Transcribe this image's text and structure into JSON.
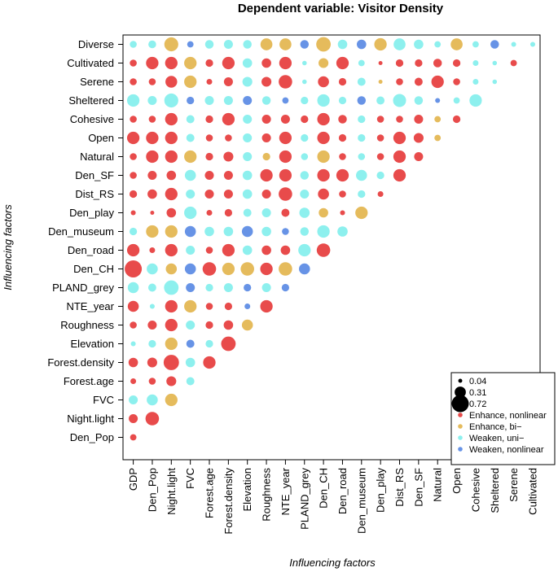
{
  "chart_data": {
    "type": "scatter",
    "title": "Dependent variable: Visitor Density",
    "xlabel": "Influencing factors",
    "ylabel": "Influencing factors",
    "x_categories": [
      "GDP",
      "Den_Pop",
      "Night.light",
      "FVC",
      "Forest.age",
      "Forest.density",
      "Elevation",
      "Roughness",
      "NTE_year",
      "PLAND_grey",
      "Den_CH",
      "Den_road",
      "Den_museum",
      "Den_play",
      "Dist_RS",
      "Den_SF",
      "Natural",
      "Open",
      "Cohesive",
      "Sheltered",
      "Serene",
      "Cultivated"
    ],
    "y_categories": [
      "Diverse",
      "Cultivated",
      "Serene",
      "Sheltered",
      "Cohesive",
      "Open",
      "Natural",
      "Den_SF",
      "Dist_RS",
      "Den_play",
      "Den_museum",
      "Den_road",
      "Den_CH",
      "PLAND_grey",
      "NTE_year",
      "Roughness",
      "Elevation",
      "Forest.density",
      "Forest.age",
      "FVC",
      "Night.light",
      "Den_Pop"
    ],
    "interaction_types": [
      {
        "code": "E",
        "label": "Enhance, nonlinear",
        "color": "#e84b4b"
      },
      {
        "code": "B",
        "label": "Enhance, bi−",
        "color": "#e5bb5c"
      },
      {
        "code": "U",
        "label": "Weaken, uni−",
        "color": "#8df0ee"
      },
      {
        "code": "W",
        "label": "Weaken, nonlinear",
        "color": "#6793e6"
      }
    ],
    "size_legend": [
      {
        "value": 0.04,
        "label": "0.04"
      },
      {
        "value": 0.31,
        "label": "0.31"
      },
      {
        "value": 0.72,
        "label": "0.72"
      }
    ],
    "legend_position": "bottom-right",
    "matrix": {
      "Diverse": [
        [
          "U",
          0.12
        ],
        [
          "U",
          0.15
        ],
        [
          "B",
          0.48
        ],
        [
          "W",
          0.1
        ],
        [
          "U",
          0.18
        ],
        [
          "U",
          0.2
        ],
        [
          "U",
          0.18
        ],
        [
          "B",
          0.35
        ],
        [
          "B",
          0.35
        ],
        [
          "W",
          0.18
        ],
        [
          "B",
          0.52
        ],
        [
          "U",
          0.22
        ],
        [
          "W",
          0.22
        ],
        [
          "B",
          0.38
        ],
        [
          "U",
          0.35
        ],
        [
          "U",
          0.22
        ],
        [
          "U",
          0.1
        ],
        [
          "B",
          0.35
        ],
        [
          "U",
          0.1
        ],
        [
          "W",
          0.18
        ],
        [
          "U",
          0.06
        ],
        [
          "U",
          0.06
        ]
      ],
      "Cultivated": [
        [
          "E",
          0.12
        ],
        [
          "E",
          0.38
        ],
        [
          "E",
          0.38
        ],
        [
          "B",
          0.38
        ],
        [
          "E",
          0.14
        ],
        [
          "E",
          0.38
        ],
        [
          "U",
          0.22
        ],
        [
          "E",
          0.22
        ],
        [
          "E",
          0.38
        ],
        [
          "U",
          0.05
        ],
        [
          "B",
          0.24
        ],
        [
          "E",
          0.38
        ],
        [
          "U",
          0.1
        ],
        [
          "E",
          0.04
        ],
        [
          "E",
          0.14
        ],
        [
          "E",
          0.14
        ],
        [
          "E",
          0.18
        ],
        [
          "E",
          0.14
        ],
        [
          "U",
          0.08
        ],
        [
          "U",
          0.05
        ],
        [
          "E",
          0.1
        ]
      ],
      "Serene": [
        [
          "E",
          0.12
        ],
        [
          "E",
          0.12
        ],
        [
          "E",
          0.34
        ],
        [
          "B",
          0.38
        ],
        [
          "E",
          0.08
        ],
        [
          "E",
          0.2
        ],
        [
          "U",
          0.24
        ],
        [
          "E",
          0.24
        ],
        [
          "E",
          0.45
        ],
        [
          "U",
          0.05
        ],
        [
          "E",
          0.3
        ],
        [
          "E",
          0.14
        ],
        [
          "U",
          0.16
        ],
        [
          "B",
          0.04
        ],
        [
          "E",
          0.12
        ],
        [
          "E",
          0.16
        ],
        [
          "E",
          0.38
        ],
        [
          "E",
          0.12
        ],
        [
          "U",
          0.08
        ],
        [
          "U",
          0.05
        ]
      ],
      "Sheltered": [
        [
          "U",
          0.38
        ],
        [
          "U",
          0.2
        ],
        [
          "U",
          0.48
        ],
        [
          "W",
          0.14
        ],
        [
          "U",
          0.2
        ],
        [
          "U",
          0.2
        ],
        [
          "W",
          0.2
        ],
        [
          "U",
          0.18
        ],
        [
          "W",
          0.1
        ],
        [
          "U",
          0.14
        ],
        [
          "U",
          0.38
        ],
        [
          "U",
          0.14
        ],
        [
          "W",
          0.18
        ],
        [
          "U",
          0.16
        ],
        [
          "U",
          0.42
        ],
        [
          "U",
          0.18
        ],
        [
          "W",
          0.06
        ],
        [
          "U",
          0.1
        ],
        [
          "U",
          0.38
        ]
      ],
      "Cohesive": [
        [
          "E",
          0.12
        ],
        [
          "E",
          0.12
        ],
        [
          "E",
          0.38
        ],
        [
          "U",
          0.16
        ],
        [
          "E",
          0.14
        ],
        [
          "E",
          0.38
        ],
        [
          "U",
          0.2
        ],
        [
          "E",
          0.2
        ],
        [
          "E",
          0.2
        ],
        [
          "E",
          0.14
        ],
        [
          "E",
          0.38
        ],
        [
          "E",
          0.18
        ],
        [
          "U",
          0.14
        ],
        [
          "E",
          0.12
        ],
        [
          "E",
          0.12
        ],
        [
          "E",
          0.2
        ],
        [
          "B",
          0.1
        ],
        [
          "E",
          0.14
        ]
      ],
      "Open": [
        [
          "E",
          0.38
        ],
        [
          "E",
          0.38
        ],
        [
          "E",
          0.38
        ],
        [
          "U",
          0.16
        ],
        [
          "E",
          0.12
        ],
        [
          "E",
          0.12
        ],
        [
          "U",
          0.2
        ],
        [
          "E",
          0.2
        ],
        [
          "E",
          0.38
        ],
        [
          "U",
          0.14
        ],
        [
          "E",
          0.38
        ],
        [
          "E",
          0.14
        ],
        [
          "U",
          0.14
        ],
        [
          "E",
          0.12
        ],
        [
          "E",
          0.38
        ],
        [
          "E",
          0.24
        ],
        [
          "B",
          0.1
        ]
      ],
      "Natural": [
        [
          "E",
          0.12
        ],
        [
          "E",
          0.38
        ],
        [
          "E",
          0.38
        ],
        [
          "B",
          0.38
        ],
        [
          "E",
          0.14
        ],
        [
          "E",
          0.24
        ],
        [
          "U",
          0.2
        ],
        [
          "B",
          0.14
        ],
        [
          "E",
          0.38
        ],
        [
          "U",
          0.12
        ],
        [
          "B",
          0.38
        ],
        [
          "E",
          0.12
        ],
        [
          "U",
          0.12
        ],
        [
          "E",
          0.12
        ],
        [
          "E",
          0.38
        ],
        [
          "E",
          0.2
        ]
      ],
      "Den_SF": [
        [
          "E",
          0.12
        ],
        [
          "E",
          0.2
        ],
        [
          "E",
          0.22
        ],
        [
          "U",
          0.3
        ],
        [
          "E",
          0.2
        ],
        [
          "E",
          0.2
        ],
        [
          "U",
          0.22
        ],
        [
          "E",
          0.38
        ],
        [
          "E",
          0.38
        ],
        [
          "U",
          0.18
        ],
        [
          "E",
          0.38
        ],
        [
          "E",
          0.38
        ],
        [
          "U",
          0.3
        ],
        [
          "U",
          0.14
        ],
        [
          "E",
          0.38
        ]
      ],
      "Dist_RS": [
        [
          "E",
          0.14
        ],
        [
          "E",
          0.22
        ],
        [
          "E",
          0.38
        ],
        [
          "U",
          0.2
        ],
        [
          "E",
          0.2
        ],
        [
          "E",
          0.2
        ],
        [
          "U",
          0.22
        ],
        [
          "E",
          0.2
        ],
        [
          "E",
          0.45
        ],
        [
          "U",
          0.2
        ],
        [
          "E",
          0.3
        ],
        [
          "E",
          0.12
        ],
        [
          "U",
          0.14
        ],
        [
          "E",
          0.08
        ]
      ],
      "Den_play": [
        [
          "E",
          0.06
        ],
        [
          "E",
          0.04
        ],
        [
          "E",
          0.22
        ],
        [
          "U",
          0.38
        ],
        [
          "E",
          0.08
        ],
        [
          "E",
          0.14
        ],
        [
          "U",
          0.16
        ],
        [
          "U",
          0.2
        ],
        [
          "E",
          0.16
        ],
        [
          "U",
          0.26
        ],
        [
          "B",
          0.22
        ],
        [
          "E",
          0.06
        ],
        [
          "B",
          0.38
        ]
      ],
      "Den_museum": [
        [
          "U",
          0.14
        ],
        [
          "B",
          0.38
        ],
        [
          "B",
          0.38
        ],
        [
          "W",
          0.3
        ],
        [
          "U",
          0.22
        ],
        [
          "U",
          0.22
        ],
        [
          "W",
          0.3
        ],
        [
          "U",
          0.22
        ],
        [
          "W",
          0.12
        ],
        [
          "U",
          0.18
        ],
        [
          "U",
          0.38
        ],
        [
          "U",
          0.26
        ]
      ],
      "Den_road": [
        [
          "E",
          0.38
        ],
        [
          "E",
          0.08
        ],
        [
          "E",
          0.38
        ],
        [
          "U",
          0.2
        ],
        [
          "E",
          0.12
        ],
        [
          "E",
          0.38
        ],
        [
          "U",
          0.22
        ],
        [
          "E",
          0.22
        ],
        [
          "E",
          0.22
        ],
        [
          "U",
          0.38
        ],
        [
          "E",
          0.45
        ]
      ],
      "Den_CH": [
        [
          "E",
          0.72
        ],
        [
          "U",
          0.3
        ],
        [
          "B",
          0.3
        ],
        [
          "W",
          0.3
        ],
        [
          "E",
          0.45
        ],
        [
          "B",
          0.38
        ],
        [
          "B",
          0.45
        ],
        [
          "E",
          0.38
        ],
        [
          "B",
          0.45
        ],
        [
          "W",
          0.3
        ]
      ],
      "PLAND_grey": [
        [
          "U",
          0.3
        ],
        [
          "U",
          0.16
        ],
        [
          "U",
          0.52
        ],
        [
          "W",
          0.2
        ],
        [
          "U",
          0.14
        ],
        [
          "U",
          0.2
        ],
        [
          "W",
          0.14
        ],
        [
          "U",
          0.2
        ],
        [
          "W",
          0.14
        ]
      ],
      "NTE_year": [
        [
          "E",
          0.3
        ],
        [
          "U",
          0.06
        ],
        [
          "E",
          0.38
        ],
        [
          "B",
          0.38
        ],
        [
          "E",
          0.12
        ],
        [
          "E",
          0.14
        ],
        [
          "W",
          0.08
        ],
        [
          "E",
          0.38
        ]
      ],
      "Roughness": [
        [
          "E",
          0.12
        ],
        [
          "E",
          0.2
        ],
        [
          "E",
          0.38
        ],
        [
          "U",
          0.2
        ],
        [
          "E",
          0.14
        ],
        [
          "E",
          0.22
        ],
        [
          "B",
          0.3
        ]
      ],
      "Elevation": [
        [
          "U",
          0.06
        ],
        [
          "U",
          0.14
        ],
        [
          "B",
          0.38
        ],
        [
          "W",
          0.16
        ],
        [
          "U",
          0.14
        ],
        [
          "E",
          0.52
        ]
      ],
      "Forest.density": [
        [
          "E",
          0.22
        ],
        [
          "E",
          0.24
        ],
        [
          "E",
          0.58
        ],
        [
          "U",
          0.22
        ],
        [
          "E",
          0.38
        ]
      ],
      "Forest.age": [
        [
          "E",
          0.08
        ],
        [
          "E",
          0.12
        ],
        [
          "E",
          0.24
        ],
        [
          "U",
          0.16
        ]
      ],
      "FVC": [
        [
          "U",
          0.2
        ],
        [
          "U",
          0.3
        ],
        [
          "B",
          0.38
        ]
      ],
      "Night.light": [
        [
          "E",
          0.2
        ],
        [
          "E",
          0.45
        ]
      ],
      "Den_Pop": [
        [
          "E",
          0.1
        ]
      ]
    }
  }
}
